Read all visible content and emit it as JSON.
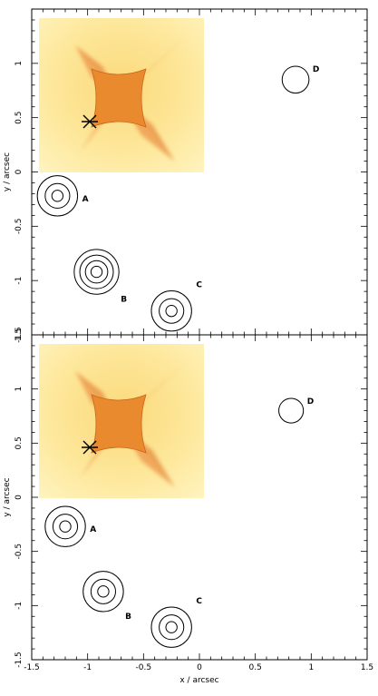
{
  "chart_data": [
    {
      "type": "scatter",
      "xlabel": "",
      "ylabel": "y / arcsec",
      "xlim": [
        -1.5,
        1.5
      ],
      "ylim": [
        -1.5,
        1.5
      ],
      "x_ticks": [
        "-1.5",
        "-1",
        "-0.5",
        "0",
        "0.5",
        "1",
        "1.5"
      ],
      "y_ticks": [
        "-1.5",
        "-1",
        "-0.5",
        "0",
        "0.5",
        "1"
      ],
      "grid": false,
      "images": [
        {
          "name": "A",
          "x": -1.27,
          "y": -0.22,
          "rings": [
            0.18,
            0.11,
            0.05
          ]
        },
        {
          "name": "B",
          "x": -0.92,
          "y": -0.92,
          "rings": [
            0.2,
            0.15,
            0.1,
            0.05
          ]
        },
        {
          "name": "C",
          "x": -0.25,
          "y": -1.28,
          "rings": [
            0.18,
            0.11,
            0.05
          ]
        },
        {
          "name": "D",
          "x": 0.86,
          "y": 0.85,
          "rings": [
            0.12
          ]
        }
      ],
      "inset": {
        "type": "caustic map",
        "star_marker": "source position"
      }
    },
    {
      "type": "scatter",
      "xlabel": "x / arcsec",
      "ylabel": "y / arcsec",
      "xlim": [
        -1.5,
        1.5
      ],
      "ylim": [
        -1.5,
        1.5
      ],
      "x_ticks": [
        "-1.5",
        "-1",
        "-0.5",
        "0",
        "0.5",
        "1",
        "1.5"
      ],
      "y_ticks": [
        "-1.5",
        "-1",
        "-0.5",
        "0",
        "0.5",
        "1",
        "1.5"
      ],
      "grid": false,
      "images": [
        {
          "name": "A",
          "x": -1.2,
          "y": -0.27,
          "rings": [
            0.18,
            0.11,
            0.05
          ]
        },
        {
          "name": "B",
          "x": -0.86,
          "y": -0.87,
          "rings": [
            0.18,
            0.11,
            0.05
          ]
        },
        {
          "name": "C",
          "x": -0.25,
          "y": -1.2,
          "rings": [
            0.18,
            0.11,
            0.05
          ]
        },
        {
          "name": "D",
          "x": 0.82,
          "y": 0.8,
          "rings": [
            0.11
          ]
        }
      ],
      "inset": {
        "type": "caustic map",
        "star_marker": "source position"
      }
    }
  ]
}
